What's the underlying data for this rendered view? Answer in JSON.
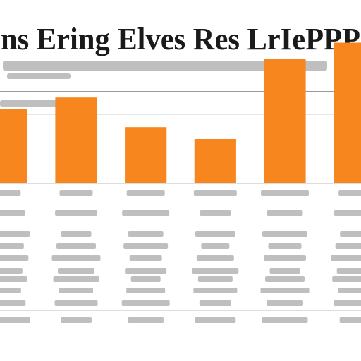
{
  "chart_data": {
    "type": "bar",
    "title": "ns Ering Elves Res LrIePPP",
    "categories": [
      null,
      null,
      null,
      null,
      null,
      null
    ],
    "values": [
      50,
      58,
      38,
      30,
      84,
      95
    ],
    "color": "#f7861e",
    "ylim": [
      0,
      100
    ]
  }
}
